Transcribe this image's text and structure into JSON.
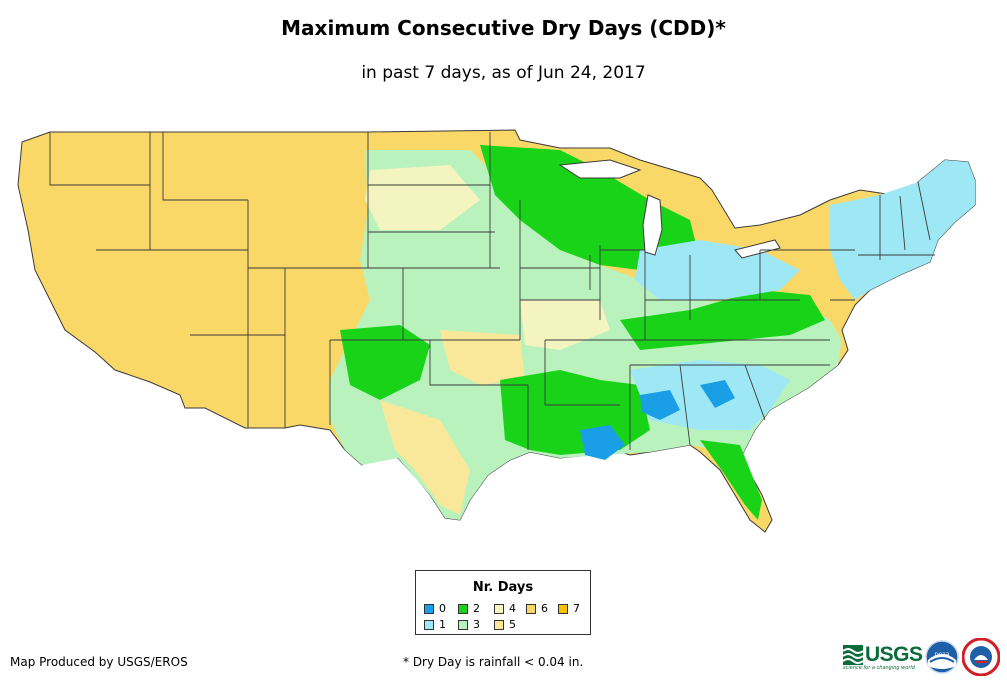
{
  "title": "Maximum Consecutive Dry Days (CDD)*",
  "subtitle": "in past 7 days, as of Jun 24, 2017",
  "legend": {
    "title": "Nr. Days",
    "items": [
      {
        "label": "0",
        "color": "#1a9fe6"
      },
      {
        "label": "1",
        "color": "#9ee8f6"
      },
      {
        "label": "2",
        "color": "#19d319"
      },
      {
        "label": "3",
        "color": "#b9f2bd"
      },
      {
        "label": "4",
        "color": "#f4f4c0"
      },
      {
        "label": "5",
        "color": "#fae89a"
      },
      {
        "label": "6",
        "color": "#fad868"
      },
      {
        "label": "7",
        "color": "#f8c000"
      }
    ]
  },
  "footer": {
    "credit": "Map Produced by USGS/EROS",
    "note": "* Dry Day is rainfall < 0.04 in."
  },
  "logos": {
    "usgs": "USGS",
    "usgs_tagline": "science for a changing world",
    "noaa": "noaa",
    "nws_icon": "nws-logo-icon"
  },
  "colors": {
    "state_border": "#3a3a3a",
    "background": "#ffffff"
  }
}
